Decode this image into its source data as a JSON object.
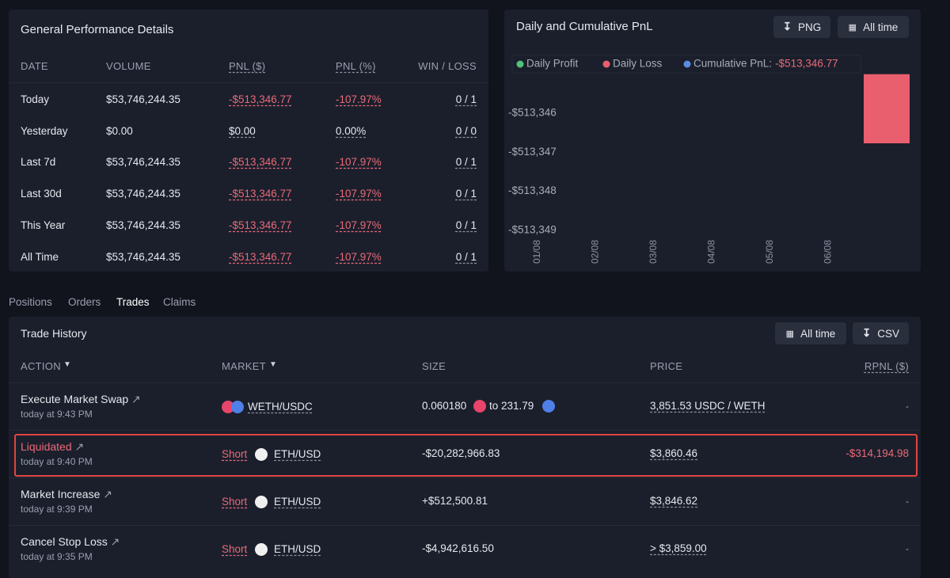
{
  "performance": {
    "title": "General Performance Details",
    "columns": [
      "DATE",
      "VOLUME",
      "PNL ($)",
      "PNL (%)",
      "WIN / LOSS"
    ],
    "rows": [
      [
        "Today",
        "$53,746,244.35",
        "-$513,346.77",
        "-107.97%",
        "0 / 1"
      ],
      [
        "Yesterday",
        "$0.00",
        "$0.00",
        "0.00%",
        "0 / 0"
      ],
      [
        "Last 7d",
        "$53,746,244.35",
        "-$513,346.77",
        "-107.97%",
        "0 / 1"
      ],
      [
        "Last 30d",
        "$53,746,244.35",
        "-$513,346.77",
        "-107.97%",
        "0 / 1"
      ],
      [
        "This Year",
        "$53,746,244.35",
        "-$513,346.77",
        "-107.97%",
        "0 / 1"
      ],
      [
        "All Time",
        "$53,746,244.35",
        "-$513,346.77",
        "-107.97%",
        "0 / 1"
      ]
    ]
  },
  "chart_panel": {
    "buttons": [
      "PNG",
      "All time"
    ]
  },
  "chart_data": {
    "type": "bar",
    "title": "Daily and Cumulative PnL",
    "categories": [
      "01/08",
      "02/08",
      "03/08",
      "04/08",
      "05/08",
      "06/08",
      null
    ],
    "series": [
      {
        "name": "Daily Profit",
        "color": "#4fc37a",
        "values": [
          null,
          null,
          null,
          null,
          null,
          null,
          null
        ]
      },
      {
        "name": "Daily Loss",
        "color": "#ea5f6e",
        "values": [
          null,
          null,
          null,
          null,
          null,
          null,
          -513346.77
        ]
      },
      {
        "name": "Cumulative PnL:",
        "color": "#5a8be0",
        "legend_label": "-$513,346.77",
        "values": [
          null,
          null,
          null,
          null,
          null,
          null,
          null
        ]
      }
    ],
    "ylim": [
      -513349,
      -513345
    ],
    "yticks": [
      {
        "value": -513346,
        "label": "-$513,346"
      },
      {
        "value": -513347,
        "label": "-$513,347"
      },
      {
        "value": -513348,
        "label": "-$513,348"
      },
      {
        "value": -513349,
        "label": "-$513,349"
      }
    ],
    "grid": false
  },
  "tabs": [
    "Positions",
    "Orders",
    "Trades",
    "Claims"
  ],
  "trades": {
    "title": "Trade History",
    "buttons": [
      "All time",
      "CSV"
    ],
    "columns": [
      "ACTION",
      "MARKET",
      "SIZE",
      "PRICE",
      "RPNL ($)"
    ],
    "rows": [
      {
        "action": "Execute Market Swap",
        "time": "today at 9:43 PM",
        "market": "WETH/USDC",
        "size": "0.060180",
        "size_to": "to 231.79",
        "price": "3,851.53 USDC / WETH",
        "rpnl": "-"
      },
      {
        "action": "Liquidated",
        "time": "today at 9:40 PM",
        "side": "Short",
        "market": "ETH/USD",
        "size": "-$20,282,966.83",
        "price": "$3,860.46",
        "rpnl": "-$314,194.98"
      },
      {
        "action": "Market Increase",
        "time": "today at 9:39 PM",
        "side": "Short",
        "market": "ETH/USD",
        "size": "+$512,500.81",
        "price": "$3,846.62",
        "rpnl": "-"
      },
      {
        "action": "Cancel Stop Loss",
        "time": "today at 9:35 PM",
        "side": "Short",
        "market": "ETH/USD",
        "size": "-$4,942,616.50",
        "price": "> $3,859.00",
        "rpnl": "-"
      }
    ]
  }
}
